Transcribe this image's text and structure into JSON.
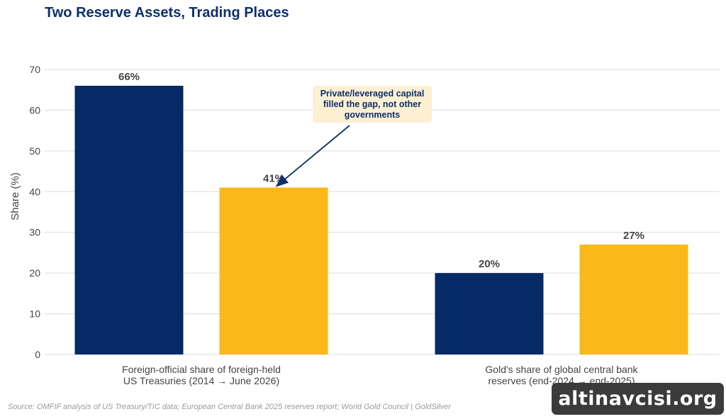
{
  "title": "Two Reserve Assets, Trading Places",
  "source": "Source: OMFIF analysis of US Treasury/TIC data; European Central Bank 2025 reserves report; World Gold Council | GoldSilver",
  "watermark": "altinavcisi.org",
  "annotation": {
    "text": "Private/leveraged capital filled the gap, not other governments",
    "target": "Foreign-official share of foreign-held US Treasuries (2014 → June 2026), second bar"
  },
  "colors": {
    "navy": "#062a66",
    "gold": "#fbb81b",
    "title": "#0d2f6b",
    "grid": "#dcdcdc",
    "annotation_bg": "#fdf0d2"
  },
  "chart_data": {
    "type": "bar",
    "title": "Two Reserve Assets, Trading Places",
    "xlabel": "",
    "ylabel": "Share (%)",
    "ylim": [
      0,
      70
    ],
    "yticks": [
      0,
      10,
      20,
      30,
      40,
      50,
      60,
      70
    ],
    "grid": true,
    "categories": [
      "Foreign-official share of foreign-held US Treasuries (2014 → June 2026)",
      "Gold's share of global central bank reserves (end-2024 → end-2025)"
    ],
    "category_lines": [
      [
        "Foreign-official share of foreign-held",
        "US Treasuries (2014 → June 2026)"
      ],
      [
        "Gold's share of global central bank",
        "reserves (end-2024 → end-2025)"
      ]
    ],
    "series": [
      {
        "values": [
          66,
          20
        ],
        "labels": [
          "66%",
          "20%"
        ],
        "color": "#062a66"
      },
      {
        "values": [
          41,
          27
        ],
        "labels": [
          "41%",
          "27%"
        ],
        "color": "#fbb81b"
      }
    ]
  }
}
